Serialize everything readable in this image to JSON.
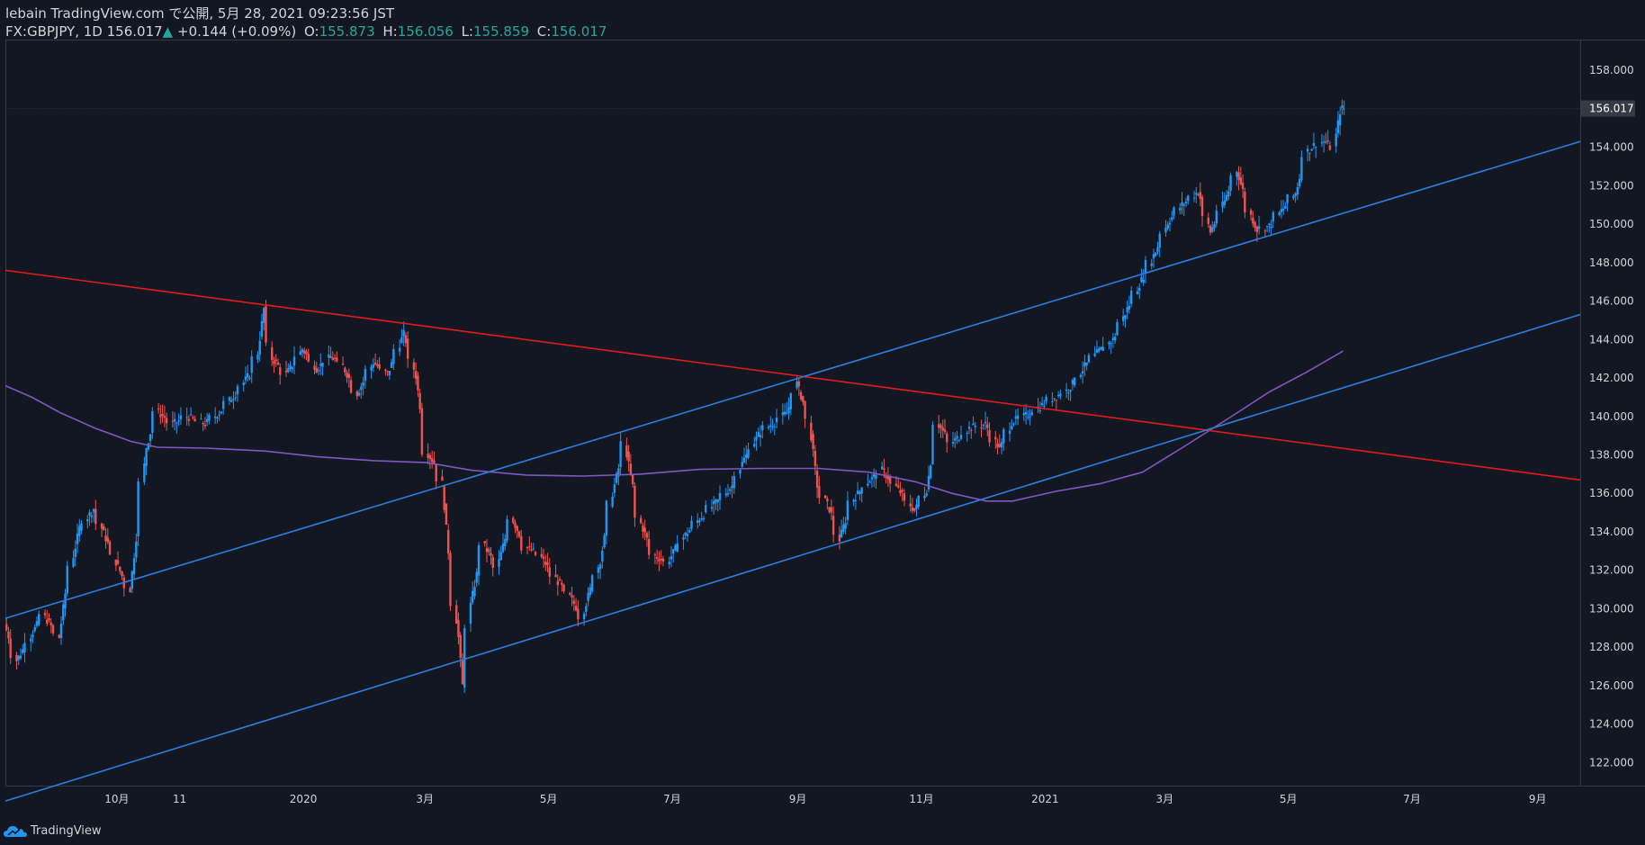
{
  "header": {
    "published": "lebain TradingView.com で公開, 5月 28, 2021 09:23:56 JST",
    "symbol": "FX:GBPJPY, 1D",
    "last": "156.017",
    "arrow": "▲",
    "change": "+0.144 (+0.09%)",
    "o_label": "O:",
    "o": "155.873",
    "h_label": "H:",
    "h": "156.056",
    "l_label": "L:",
    "l": "155.859",
    "c_label": "C:",
    "c": "156.017"
  },
  "footer": {
    "brand": "TradingView"
  },
  "colors": {
    "background": "#131722",
    "up": "#2196f3",
    "down": "#ef5350",
    "trend_red": "#e31b1b",
    "trend_blue": "#2a7fe0",
    "ma": "#7e57c2",
    "price_tag": "#363a45"
  },
  "chart_data": {
    "type": "candlestick",
    "symbol": "FX:GBPJPY",
    "timeframe": "1D",
    "ylim": [
      120.8,
      159.6
    ],
    "y_ticks": [
      122,
      124,
      126,
      128,
      130,
      132,
      134,
      136,
      138,
      140,
      142,
      144,
      146,
      148,
      150,
      152,
      154,
      156,
      158
    ],
    "y_tick_labels": [
      "122.000",
      "124.000",
      "126.000",
      "128.000",
      "130.000",
      "132.000",
      "134.000",
      "136.000",
      "138.000",
      "140.000",
      "142.000",
      "144.000",
      "146.000",
      "148.000",
      "150.000",
      "152.000",
      "154.000",
      "156.000",
      "158.000"
    ],
    "last_price": 156.017,
    "last_price_label": "156.017",
    "x_ticks": [
      "10月",
      "11",
      "2020",
      "3月",
      "5月",
      "7月",
      "9月",
      "11月",
      "2021",
      "3月",
      "5月",
      "7月",
      "9月"
    ],
    "x_tick_dates": [
      "2019-10-01",
      "2019-11-01",
      "2020-01-01",
      "2020-03-01",
      "2020-05-01",
      "2020-07-01",
      "2020-09-01",
      "2020-11-01",
      "2021-01-01",
      "2021-03-01",
      "2021-05-01",
      "2021-07-01",
      "2021-09-01"
    ],
    "x_range": [
      "2019-08-07",
      "2021-09-22"
    ],
    "price_path": [
      [
        "2019-08-07",
        129.2
      ],
      [
        "2019-08-13",
        127.3
      ],
      [
        "2019-08-20",
        128.6
      ],
      [
        "2019-08-26",
        129.7
      ],
      [
        "2019-09-03",
        128.5
      ],
      [
        "2019-09-06",
        130.8
      ],
      [
        "2019-09-13",
        134.2
      ],
      [
        "2019-09-20",
        135.2
      ],
      [
        "2019-09-27",
        133.4
      ],
      [
        "2019-10-04",
        131.7
      ],
      [
        "2019-10-08",
        131.0
      ],
      [
        "2019-10-11",
        133.7
      ],
      [
        "2019-10-16",
        138.4
      ],
      [
        "2019-10-21",
        140.3
      ],
      [
        "2019-10-29",
        139.6
      ],
      [
        "2019-11-05",
        140.0
      ],
      [
        "2019-11-14",
        139.6
      ],
      [
        "2019-11-21",
        140.2
      ],
      [
        "2019-11-29",
        141.2
      ],
      [
        "2019-12-06",
        142.2
      ],
      [
        "2019-12-10",
        143.3
      ],
      [
        "2019-12-13",
        145.6
      ],
      [
        "2019-12-17",
        143.0
      ],
      [
        "2019-12-24",
        142.2
      ],
      [
        "2020-01-01",
        143.5
      ],
      [
        "2020-01-08",
        142.5
      ],
      [
        "2020-01-15",
        143.1
      ],
      [
        "2020-01-21",
        142.6
      ],
      [
        "2020-01-28",
        141.2
      ],
      [
        "2020-02-05",
        142.8
      ],
      [
        "2020-02-12",
        142.2
      ],
      [
        "2020-02-20",
        144.3
      ],
      [
        "2020-02-26",
        142.1
      ],
      [
        "2020-03-02",
        138.2
      ],
      [
        "2020-03-06",
        137.6
      ],
      [
        "2020-03-10",
        136.5
      ],
      [
        "2020-03-13",
        133.0
      ],
      [
        "2020-03-18",
        128.5
      ],
      [
        "2020-03-20",
        126.0
      ],
      [
        "2020-03-24",
        130.2
      ],
      [
        "2020-03-30",
        133.4
      ],
      [
        "2020-04-06",
        132.1
      ],
      [
        "2020-04-13",
        134.8
      ],
      [
        "2020-04-20",
        133.2
      ],
      [
        "2020-04-27",
        132.8
      ],
      [
        "2020-05-06",
        131.4
      ],
      [
        "2020-05-12",
        130.6
      ],
      [
        "2020-05-18",
        129.6
      ],
      [
        "2020-05-22",
        131.0
      ],
      [
        "2020-05-27",
        132.5
      ],
      [
        "2020-06-02",
        136.0
      ],
      [
        "2020-06-08",
        138.6
      ],
      [
        "2020-06-15",
        134.7
      ],
      [
        "2020-06-22",
        132.8
      ],
      [
        "2020-06-29",
        132.4
      ],
      [
        "2020-07-06",
        133.6
      ],
      [
        "2020-07-15",
        134.7
      ],
      [
        "2020-07-24",
        135.6
      ],
      [
        "2020-07-31",
        136.4
      ],
      [
        "2020-08-06",
        137.8
      ],
      [
        "2020-08-14",
        139.2
      ],
      [
        "2020-08-21",
        139.7
      ],
      [
        "2020-08-27",
        140.2
      ],
      [
        "2020-09-01",
        141.7
      ],
      [
        "2020-09-07",
        139.8
      ],
      [
        "2020-09-11",
        136.4
      ],
      [
        "2020-09-17",
        135.2
      ],
      [
        "2020-09-22",
        133.6
      ],
      [
        "2020-09-28",
        135.6
      ],
      [
        "2020-10-06",
        136.6
      ],
      [
        "2020-10-13",
        137.2
      ],
      [
        "2020-10-21",
        136.2
      ],
      [
        "2020-10-29",
        135.1
      ],
      [
        "2020-11-04",
        136.2
      ],
      [
        "2020-11-09",
        139.7
      ],
      [
        "2020-11-16",
        138.6
      ],
      [
        "2020-11-25",
        139.4
      ],
      [
        "2020-12-03",
        139.6
      ],
      [
        "2020-12-10",
        138.3
      ],
      [
        "2020-12-16",
        139.7
      ],
      [
        "2020-12-24",
        140.1
      ],
      [
        "2021-01-06",
        141.0
      ],
      [
        "2021-01-13",
        141.4
      ],
      [
        "2021-01-21",
        142.6
      ],
      [
        "2021-01-28",
        143.4
      ],
      [
        "2021-02-04",
        144.0
      ],
      [
        "2021-02-11",
        145.6
      ],
      [
        "2021-02-18",
        147.1
      ],
      [
        "2021-02-25",
        148.6
      ],
      [
        "2021-03-03",
        150.1
      ],
      [
        "2021-03-10",
        151.0
      ],
      [
        "2021-03-18",
        151.7
      ],
      [
        "2021-03-24",
        149.6
      ],
      [
        "2021-03-31",
        151.2
      ],
      [
        "2021-04-06",
        152.8
      ],
      [
        "2021-04-12",
        150.7
      ],
      [
        "2021-04-16",
        149.7
      ],
      [
        "2021-04-22",
        149.9
      ],
      [
        "2021-04-28",
        150.7
      ],
      [
        "2021-05-05",
        151.6
      ],
      [
        "2021-05-10",
        153.7
      ],
      [
        "2021-05-14",
        154.1
      ],
      [
        "2021-05-19",
        154.3
      ],
      [
        "2021-05-24",
        154.0
      ],
      [
        "2021-05-27",
        155.87
      ],
      [
        "2021-05-28",
        156.02
      ]
    ],
    "moving_average": [
      [
        "2019-08-07",
        141.6
      ],
      [
        "2019-08-20",
        141.0
      ],
      [
        "2019-09-03",
        140.2
      ],
      [
        "2019-09-20",
        139.4
      ],
      [
        "2019-10-08",
        138.7
      ],
      [
        "2019-10-21",
        138.4
      ],
      [
        "2019-11-14",
        138.35
      ],
      [
        "2019-12-13",
        138.2
      ],
      [
        "2020-01-08",
        137.9
      ],
      [
        "2020-02-05",
        137.7
      ],
      [
        "2020-03-02",
        137.6
      ],
      [
        "2020-03-24",
        137.2
      ],
      [
        "2020-04-20",
        136.95
      ],
      [
        "2020-05-18",
        136.9
      ],
      [
        "2020-06-15",
        137.0
      ],
      [
        "2020-07-15",
        137.25
      ],
      [
        "2020-08-14",
        137.3
      ],
      [
        "2020-09-11",
        137.3
      ],
      [
        "2020-10-06",
        137.1
      ],
      [
        "2020-10-29",
        136.6
      ],
      [
        "2020-11-16",
        136.0
      ],
      [
        "2020-12-03",
        135.6
      ],
      [
        "2020-12-16",
        135.6
      ],
      [
        "2021-01-06",
        136.1
      ],
      [
        "2021-01-28",
        136.5
      ],
      [
        "2021-02-18",
        137.1
      ],
      [
        "2021-03-10",
        138.4
      ],
      [
        "2021-03-31",
        139.8
      ],
      [
        "2021-04-22",
        141.3
      ],
      [
        "2021-05-10",
        142.3
      ],
      [
        "2021-05-28",
        143.4
      ]
    ],
    "trendlines": [
      {
        "color": "red",
        "from": [
          "2019-08-07",
          147.6
        ],
        "to": [
          "2021-09-22",
          136.7
        ]
      },
      {
        "color": "blue",
        "from": [
          "2019-08-07",
          129.5
        ],
        "to": [
          "2021-09-22",
          154.3
        ]
      },
      {
        "color": "blue",
        "from": [
          "2019-08-07",
          120.0
        ],
        "to": [
          "2021-09-22",
          145.3
        ]
      }
    ]
  }
}
